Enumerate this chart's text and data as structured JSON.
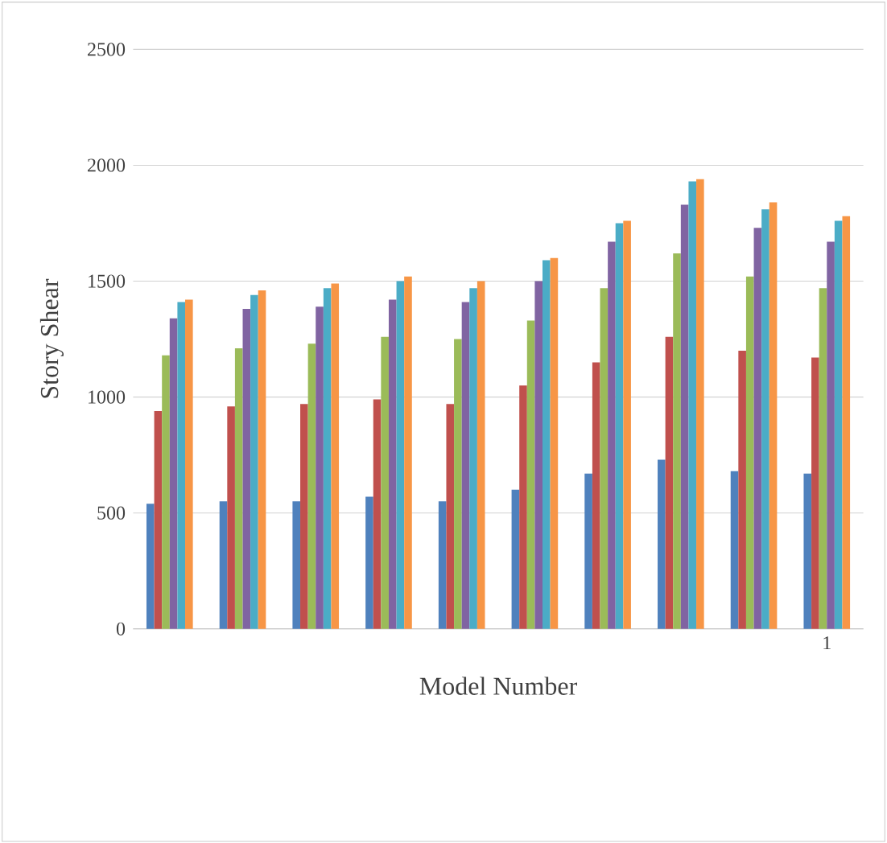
{
  "chart_data": {
    "type": "bar",
    "xlabel": "Model Number",
    "ylabel": "Story Shear",
    "categories": [
      null,
      null,
      null,
      null,
      null,
      null,
      null,
      null,
      null,
      "1"
    ],
    "series": [
      {
        "color": "#4f81bd",
        "values": [
          540,
          550,
          550,
          570,
          550,
          600,
          670,
          730,
          680,
          670
        ]
      },
      {
        "color": "#c0504d",
        "values": [
          940,
          960,
          970,
          990,
          970,
          1050,
          1150,
          1260,
          1200,
          1170
        ]
      },
      {
        "color": "#9bbb59",
        "values": [
          1180,
          1210,
          1230,
          1260,
          1250,
          1330,
          1470,
          1620,
          1520,
          1470
        ]
      },
      {
        "color": "#8064a2",
        "values": [
          1340,
          1380,
          1390,
          1420,
          1410,
          1500,
          1670,
          1830,
          1730,
          1670
        ]
      },
      {
        "color": "#4bacc6",
        "values": [
          1410,
          1440,
          1470,
          1500,
          1470,
          1590,
          1750,
          1930,
          1810,
          1760
        ]
      },
      {
        "color": "#f79646",
        "values": [
          1420,
          1460,
          1490,
          1520,
          1500,
          1600,
          1760,
          1940,
          1840,
          1780
        ]
      }
    ],
    "ylim": [
      0,
      2500
    ],
    "yticks": [
      0,
      500,
      1000,
      1500,
      2000,
      2500
    ],
    "grid": "y"
  }
}
